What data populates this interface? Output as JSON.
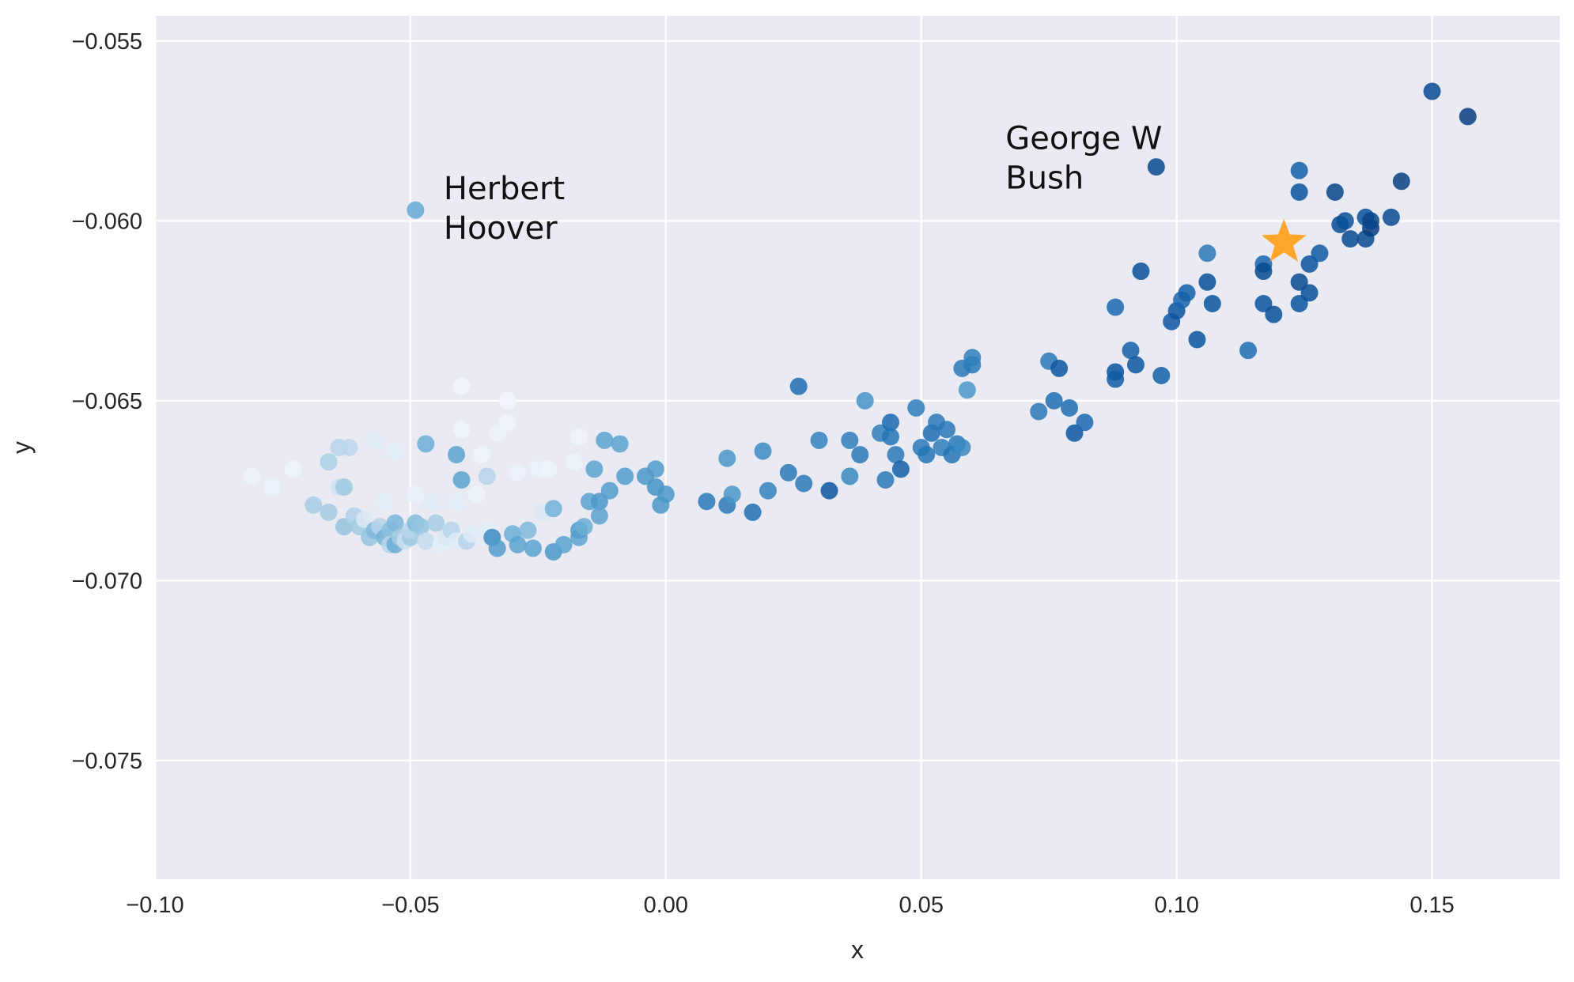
{
  "chart_data": {
    "type": "scatter",
    "title": "",
    "xlabel": "x",
    "ylabel": "y",
    "xlim": [
      -0.1,
      0.175
    ],
    "ylim": [
      -0.0783,
      -0.0543
    ],
    "x_ticks": [
      -0.1,
      -0.05,
      0.0,
      0.05,
      0.1,
      0.15
    ],
    "x_tick_labels": [
      "−0.10",
      "−0.05",
      "0.00",
      "0.05",
      "0.10",
      "0.15"
    ],
    "y_ticks": [
      -0.055,
      -0.06,
      -0.065,
      -0.07,
      -0.075
    ],
    "y_tick_labels": [
      "−0.055",
      "−0.060",
      "−0.065",
      "−0.070",
      "−0.075"
    ],
    "grid": true,
    "colormap": "Blues",
    "colors": {
      "background": "#eaeaf2",
      "grid": "#ffffff",
      "star": "#ffa62b"
    },
    "star": {
      "x": 0.121,
      "y": -0.0606
    },
    "annotations": [
      {
        "lines": [
          "Herbert",
          "Hoover"
        ],
        "x": -0.0435,
        "y": -0.0594
      },
      {
        "lines": [
          "George W",
          "Bush"
        ],
        "x": 0.0665,
        "y": -0.058
      }
    ],
    "points": [
      [
        -0.081,
        -0.0671,
        0.06
      ],
      [
        -0.077,
        -0.0674,
        0.07
      ],
      [
        -0.073,
        -0.0669,
        0.05
      ],
      [
        -0.069,
        -0.0679,
        0.35
      ],
      [
        -0.066,
        -0.0681,
        0.36
      ],
      [
        -0.066,
        -0.0667,
        0.34
      ],
      [
        -0.064,
        -0.0674,
        0.2
      ],
      [
        -0.064,
        -0.0663,
        0.3
      ],
      [
        -0.063,
        -0.0674,
        0.38
      ],
      [
        -0.063,
        -0.0685,
        0.4
      ],
      [
        -0.062,
        -0.0663,
        0.28
      ],
      [
        -0.061,
        -0.0682,
        0.32
      ],
      [
        -0.06,
        -0.0685,
        0.37
      ],
      [
        -0.059,
        -0.0683,
        0.15
      ],
      [
        -0.058,
        -0.0688,
        0.4
      ],
      [
        -0.057,
        -0.0686,
        0.45
      ],
      [
        -0.057,
        -0.0661,
        0.12
      ],
      [
        -0.056,
        -0.0685,
        0.3
      ],
      [
        -0.055,
        -0.0678,
        0.1
      ],
      [
        -0.055,
        -0.0688,
        0.48
      ],
      [
        -0.054,
        -0.0686,
        0.42
      ],
      [
        -0.054,
        -0.069,
        0.3
      ],
      [
        -0.053,
        -0.0684,
        0.46
      ],
      [
        -0.053,
        -0.0664,
        0.1
      ],
      [
        -0.053,
        -0.069,
        0.5
      ],
      [
        -0.052,
        -0.0688,
        0.35
      ],
      [
        -0.051,
        -0.0689,
        0.22
      ],
      [
        -0.05,
        -0.0688,
        0.38
      ],
      [
        -0.05,
        -0.0686,
        0.3
      ],
      [
        -0.049,
        -0.0684,
        0.44
      ],
      [
        -0.049,
        -0.0676,
        0.08
      ],
      [
        -0.048,
        -0.0685,
        0.4
      ],
      [
        -0.047,
        -0.0689,
        0.25
      ],
      [
        -0.047,
        -0.0662,
        0.5
      ],
      [
        -0.046,
        -0.0678,
        0.12
      ],
      [
        -0.045,
        -0.0684,
        0.35
      ],
      [
        -0.044,
        -0.069,
        0.1
      ],
      [
        -0.043,
        -0.0688,
        0.15
      ],
      [
        -0.042,
        -0.0686,
        0.3
      ],
      [
        -0.041,
        -0.0678,
        0.1
      ],
      [
        -0.041,
        -0.0689,
        0.12
      ],
      [
        -0.041,
        -0.0665,
        0.55
      ],
      [
        -0.04,
        -0.0672,
        0.55
      ],
      [
        -0.04,
        -0.0658,
        0.05
      ],
      [
        -0.04,
        -0.0646,
        0.04
      ],
      [
        -0.039,
        -0.0689,
        0.3
      ],
      [
        -0.038,
        -0.0687,
        0.12
      ],
      [
        -0.037,
        -0.0676,
        0.06
      ],
      [
        -0.036,
        -0.0665,
        0.05
      ],
      [
        -0.035,
        -0.0686,
        0.1
      ],
      [
        -0.035,
        -0.0671,
        0.3
      ],
      [
        -0.034,
        -0.0688,
        0.65
      ],
      [
        -0.033,
        -0.0691,
        0.58
      ],
      [
        -0.033,
        -0.0659,
        0.06
      ],
      [
        -0.031,
        -0.0656,
        0.04
      ],
      [
        -0.031,
        -0.065,
        0.03
      ],
      [
        -0.03,
        -0.0687,
        0.5
      ],
      [
        -0.029,
        -0.067,
        0.07
      ],
      [
        -0.029,
        -0.069,
        0.55
      ],
      [
        -0.027,
        -0.0686,
        0.45
      ],
      [
        -0.026,
        -0.0691,
        0.55
      ],
      [
        -0.025,
        -0.0669,
        0.07
      ],
      [
        -0.024,
        -0.0681,
        0.15
      ],
      [
        -0.023,
        -0.0669,
        0.05
      ],
      [
        -0.022,
        -0.0692,
        0.6
      ],
      [
        -0.022,
        -0.068,
        0.48
      ],
      [
        -0.02,
        -0.069,
        0.55
      ],
      [
        -0.018,
        -0.0667,
        0.06
      ],
      [
        -0.017,
        -0.066,
        0.05
      ],
      [
        -0.017,
        -0.0688,
        0.55
      ],
      [
        -0.017,
        -0.0686,
        0.58
      ],
      [
        -0.016,
        -0.0685,
        0.5
      ],
      [
        -0.015,
        -0.0678,
        0.55
      ],
      [
        -0.014,
        -0.0669,
        0.55
      ],
      [
        -0.013,
        -0.0678,
        0.6
      ],
      [
        -0.013,
        -0.0682,
        0.55
      ],
      [
        -0.012,
        -0.0661,
        0.55
      ],
      [
        -0.011,
        -0.0675,
        0.58
      ],
      [
        -0.009,
        -0.0662,
        0.55
      ],
      [
        -0.008,
        -0.0671,
        0.58
      ],
      [
        -0.004,
        -0.0671,
        0.6
      ],
      [
        -0.002,
        -0.0669,
        0.58
      ],
      [
        -0.002,
        -0.0674,
        0.62
      ],
      [
        -0.001,
        -0.0679,
        0.6
      ],
      [
        0.0,
        -0.0676,
        0.6
      ],
      [
        0.008,
        -0.0678,
        0.72
      ],
      [
        0.012,
        -0.0679,
        0.72
      ],
      [
        0.012,
        -0.0666,
        0.6
      ],
      [
        0.013,
        -0.0676,
        0.6
      ],
      [
        0.017,
        -0.0681,
        0.75
      ],
      [
        0.019,
        -0.0664,
        0.65
      ],
      [
        0.02,
        -0.0675,
        0.68
      ],
      [
        0.024,
        -0.067,
        0.72
      ],
      [
        0.026,
        -0.0646,
        0.76
      ],
      [
        0.027,
        -0.0673,
        0.72
      ],
      [
        0.03,
        -0.0661,
        0.68
      ],
      [
        0.032,
        -0.0675,
        0.85
      ],
      [
        0.036,
        -0.0661,
        0.7
      ],
      [
        0.036,
        -0.0671,
        0.66
      ],
      [
        0.038,
        -0.0665,
        0.72
      ],
      [
        0.039,
        -0.065,
        0.62
      ],
      [
        0.042,
        -0.0659,
        0.7
      ],
      [
        0.043,
        -0.0672,
        0.72
      ],
      [
        0.044,
        -0.0656,
        0.78
      ],
      [
        0.044,
        -0.066,
        0.74
      ],
      [
        0.045,
        -0.0665,
        0.72
      ],
      [
        0.046,
        -0.0669,
        0.82
      ],
      [
        0.049,
        -0.0652,
        0.7
      ],
      [
        0.05,
        -0.0663,
        0.72
      ],
      [
        0.051,
        -0.0665,
        0.74
      ],
      [
        0.052,
        -0.0659,
        0.76
      ],
      [
        0.053,
        -0.0656,
        0.72
      ],
      [
        0.054,
        -0.0663,
        0.7
      ],
      [
        0.055,
        -0.0658,
        0.72
      ],
      [
        0.056,
        -0.0665,
        0.74
      ],
      [
        0.057,
        -0.0662,
        0.72
      ],
      [
        0.058,
        -0.0663,
        0.66
      ],
      [
        0.058,
        -0.0641,
        0.72
      ],
      [
        0.059,
        -0.0647,
        0.6
      ],
      [
        0.06,
        -0.064,
        0.72
      ],
      [
        0.06,
        -0.0638,
        0.7
      ],
      [
        0.073,
        -0.0653,
        0.72
      ],
      [
        0.075,
        -0.0639,
        0.72
      ],
      [
        0.076,
        -0.065,
        0.76
      ],
      [
        0.077,
        -0.0641,
        0.85
      ],
      [
        0.079,
        -0.0652,
        0.76
      ],
      [
        0.08,
        -0.0659,
        0.85
      ],
      [
        0.082,
        -0.0656,
        0.78
      ],
      [
        0.088,
        -0.0642,
        0.86
      ],
      [
        0.088,
        -0.0644,
        0.84
      ],
      [
        0.088,
        -0.0624,
        0.78
      ],
      [
        0.091,
        -0.0636,
        0.82
      ],
      [
        0.092,
        -0.064,
        0.85
      ],
      [
        0.093,
        -0.0614,
        0.88
      ],
      [
        0.096,
        -0.0585,
        0.9
      ],
      [
        0.097,
        -0.0643,
        0.82
      ],
      [
        0.099,
        -0.0628,
        0.85
      ],
      [
        0.1,
        -0.0625,
        0.86
      ],
      [
        0.101,
        -0.0622,
        0.8
      ],
      [
        0.102,
        -0.062,
        0.82
      ],
      [
        0.104,
        -0.0633,
        0.86
      ],
      [
        0.106,
        -0.0609,
        0.72
      ],
      [
        0.106,
        -0.0617,
        0.88
      ],
      [
        0.107,
        -0.0623,
        0.86
      ],
      [
        0.114,
        -0.0636,
        0.76
      ],
      [
        0.117,
        -0.0612,
        0.8
      ],
      [
        0.117,
        -0.0614,
        0.9
      ],
      [
        0.117,
        -0.0623,
        0.86
      ],
      [
        0.119,
        -0.0626,
        0.88
      ],
      [
        0.124,
        -0.0586,
        0.82
      ],
      [
        0.124,
        -0.0592,
        0.86
      ],
      [
        0.124,
        -0.0623,
        0.86
      ],
      [
        0.124,
        -0.0617,
        0.9
      ],
      [
        0.126,
        -0.0612,
        0.86
      ],
      [
        0.126,
        -0.062,
        0.88
      ],
      [
        0.128,
        -0.0609,
        0.84
      ],
      [
        0.131,
        -0.0592,
        0.92
      ],
      [
        0.132,
        -0.0601,
        0.9
      ],
      [
        0.133,
        -0.06,
        0.88
      ],
      [
        0.134,
        -0.0605,
        0.9
      ],
      [
        0.137,
        -0.0599,
        0.88
      ],
      [
        0.137,
        -0.0605,
        0.9
      ],
      [
        0.138,
        -0.0602,
        0.95
      ],
      [
        0.138,
        -0.06,
        0.92
      ],
      [
        0.142,
        -0.0599,
        0.9
      ],
      [
        0.144,
        -0.0589,
        0.94
      ],
      [
        0.15,
        -0.0564,
        0.9
      ],
      [
        0.157,
        -0.0571,
        0.94
      ],
      [
        -0.049,
        -0.0597,
        0.52
      ]
    ]
  }
}
